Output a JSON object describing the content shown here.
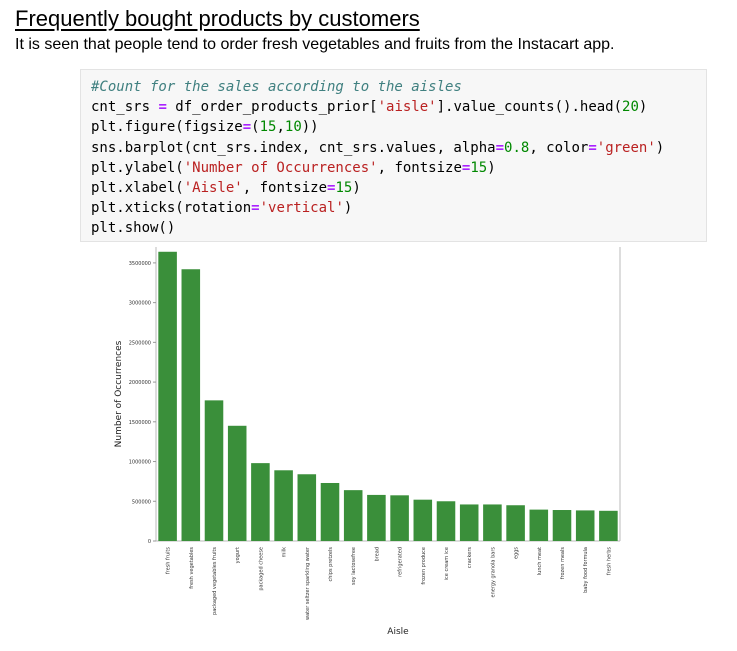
{
  "doc": {
    "heading": "Frequently bought products by customers",
    "subtext": "It is seen that people tend to order fresh vegetables and fruits from the Instacart app."
  },
  "code": {
    "line1": "#Count for the sales according to the aisles",
    "line2_a": "cnt_srs ",
    "line2_b": "=",
    "line2_c": " df_order_products_prior[",
    "line2_d": "'aisle'",
    "line2_e": "].value_counts().head(",
    "line2_f": "20",
    "line2_g": ")",
    "line3_a": "plt.figure(figsize",
    "line3_b": "=",
    "line3_c": "(",
    "line3_d": "15",
    "line3_e": ",",
    "line3_f": "10",
    "line3_g": "))",
    "line4_a": "sns.barplot(cnt_srs.index, cnt_srs.values, alpha",
    "line4_b": "=",
    "line4_c": "0.8",
    "line4_d": ", color",
    "line4_e": "=",
    "line4_f": "'green'",
    "line4_g": ")",
    "line5_a": "plt.ylabel(",
    "line5_b": "'Number of Occurrences'",
    "line5_c": ", fontsize",
    "line5_d": "=",
    "line5_e": "15",
    "line5_f": ")",
    "line6_a": "plt.xlabel(",
    "line6_b": "'Aisle'",
    "line6_c": ", fontsize",
    "line6_d": "=",
    "line6_e": "15",
    "line6_f": ")",
    "line7_a": "plt.xticks(rotation",
    "line7_b": "=",
    "line7_c": "'vertical'",
    "line7_d": ")",
    "line8": "plt.show()"
  },
  "chart_data": {
    "type": "bar",
    "categories": [
      "fresh fruits",
      "fresh vegetables",
      "packaged vegetables fruits",
      "yogurt",
      "packaged cheese",
      "milk",
      "water seltzer sparkling water",
      "chips pretzels",
      "soy lactosefree",
      "bread",
      "refrigerated",
      "frozen produce",
      "ice cream ice",
      "crackers",
      "energy granola bars",
      "eggs",
      "lunch meat",
      "frozen meals",
      "baby food formula",
      "fresh herbs"
    ],
    "values": [
      3640000,
      3420000,
      1770000,
      1450000,
      980000,
      890000,
      840000,
      730000,
      640000,
      580000,
      575000,
      520000,
      500000,
      460000,
      460000,
      450000,
      395000,
      390000,
      385000,
      380000
    ],
    "yticks": [
      0,
      500000,
      1000000,
      1500000,
      2000000,
      2500000,
      3000000,
      3500000
    ],
    "ytick_labels": [
      "0",
      "500000",
      "1000000",
      "1500000",
      "2000000",
      "2500000",
      "3000000",
      "3500000"
    ],
    "ylim": [
      0,
      3700000
    ],
    "xlabel": "Aisle",
    "ylabel": "Number of Occurrences",
    "title": "",
    "grid": false,
    "bar_color": "#3a8f3a"
  }
}
